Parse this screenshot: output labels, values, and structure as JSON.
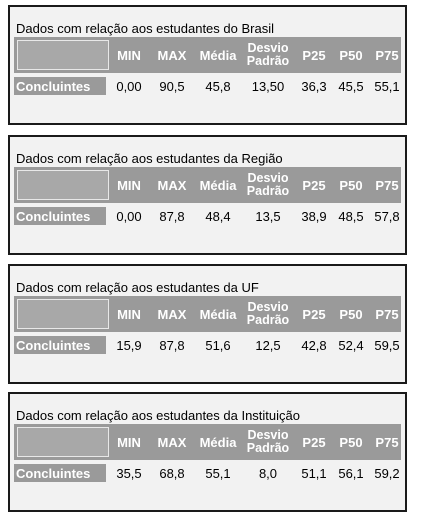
{
  "headers": {
    "min": "MIN",
    "max": "MAX",
    "media": "Média",
    "desvio_line1": "Desvio",
    "desvio_line2": "Padrão",
    "p25": "P25",
    "p50": "P50",
    "p75": "P75"
  },
  "panels": [
    {
      "title": "Dados com relação aos estudantes do Brasil",
      "row_label": "Concluintes",
      "values": {
        "min": "0,00",
        "max": "90,5",
        "media": "45,8",
        "desvio": "13,50",
        "p25": "36,3",
        "p50": "45,5",
        "p75": "55,1"
      }
    },
    {
      "title": "Dados com relação aos estudantes da Região",
      "row_label": "Concluintes",
      "values": {
        "min": "0,00",
        "max": "87,8",
        "media": "48,4",
        "desvio": "13,5",
        "p25": "38,9",
        "p50": "48,5",
        "p75": "57,8"
      }
    },
    {
      "title": "Dados com relação aos estudantes da UF",
      "row_label": "Concluintes",
      "values": {
        "min": "15,9",
        "max": "87,8",
        "media": "51,6",
        "desvio": "12,5",
        "p25": "42,8",
        "p50": "52,4",
        "p75": "59,5"
      }
    },
    {
      "title": "Dados com relação aos estudantes da Instituição",
      "row_label": "Concluintes",
      "values": {
        "min": "35,5",
        "max": "68,8",
        "media": "55,1",
        "desvio": "8,0",
        "p25": "51,1",
        "p50": "56,1",
        "p75": "59,2"
      }
    }
  ]
}
